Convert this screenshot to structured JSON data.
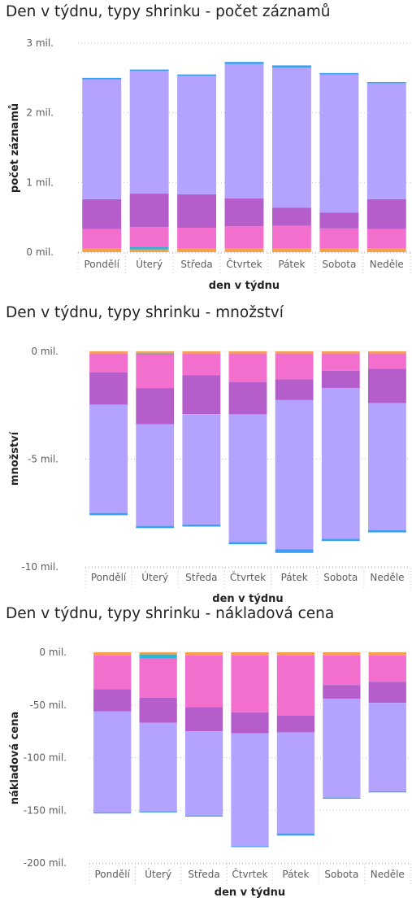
{
  "colors": {
    "grid": "#c8c6c4",
    "segments": [
      "#f6a04d",
      "#29b6d8",
      "#f36fce",
      "#b65dcc",
      "#b3a3ff",
      "#3b9ff0"
    ]
  },
  "chart_data": [
    {
      "type": "bar",
      "stacked": true,
      "title": "Den v týdnu, typy shrinku - počet záznamů",
      "xlabel": "den v týdnu",
      "ylabel": "počet záznamů",
      "categories": [
        "Pondělí",
        "Úterý",
        "Středa",
        "Čtvrtek",
        "Pátek",
        "Sobota",
        "Neděle"
      ],
      "ylim": [
        0,
        3
      ],
      "yticks": [
        0,
        1,
        2,
        3
      ],
      "ytick_labels": [
        "0 mil.",
        "1 mil.",
        "2 mil.",
        "3 mil."
      ],
      "gridlines": true,
      "series": [
        {
          "values": [
            0.05,
            0.04,
            0.05,
            0.05,
            0.05,
            0.05,
            0.05
          ]
        },
        {
          "values": [
            0.0,
            0.03,
            0.0,
            0.0,
            0.0,
            0.0,
            0.0
          ]
        },
        {
          "values": [
            0.28,
            0.29,
            0.3,
            0.32,
            0.33,
            0.29,
            0.28
          ]
        },
        {
          "values": [
            0.43,
            0.48,
            0.48,
            0.4,
            0.26,
            0.23,
            0.43
          ]
        },
        {
          "values": [
            1.72,
            1.76,
            1.7,
            1.93,
            2.01,
            1.98,
            1.66
          ]
        },
        {
          "values": [
            0.02,
            0.02,
            0.02,
            0.03,
            0.03,
            0.02,
            0.02
          ]
        }
      ]
    },
    {
      "type": "bar",
      "stacked": true,
      "title": "Den v týdnu, typy shrinku - množství",
      "xlabel": "den v týdnu",
      "ylabel": "množství",
      "categories": [
        "Pondělí",
        "Úterý",
        "Středa",
        "Čtvrtek",
        "Pátek",
        "Sobota",
        "Neděle"
      ],
      "ylim": [
        -10,
        0
      ],
      "yticks": [
        0,
        -5,
        -10
      ],
      "ytick_labels": [
        "0 mil.",
        "-5 mil.",
        "-10 mil."
      ],
      "gridlines": true,
      "series": [
        {
          "values": [
            -0.1,
            -0.1,
            -0.1,
            -0.1,
            -0.1,
            -0.1,
            -0.1
          ]
        },
        {
          "values": [
            0.0,
            -0.05,
            0.0,
            0.0,
            0.0,
            0.0,
            0.0
          ]
        },
        {
          "values": [
            -0.87,
            -1.55,
            -1.0,
            -1.32,
            -1.2,
            -0.8,
            -0.7
          ]
        },
        {
          "values": [
            -1.51,
            -1.68,
            -1.81,
            -1.5,
            -0.96,
            -0.81,
            -1.6
          ]
        },
        {
          "values": [
            -5.02,
            -4.72,
            -5.12,
            -5.93,
            -6.92,
            -6.99,
            -5.9
          ]
        },
        {
          "values": [
            -0.1,
            -0.1,
            -0.1,
            -0.1,
            -0.17,
            -0.1,
            -0.1
          ]
        }
      ]
    },
    {
      "type": "bar",
      "stacked": true,
      "title": "Den v týdnu, typy shrinku - nákladová cena",
      "xlabel": "den v týdnu",
      "ylabel": "nákladová cena",
      "categories": [
        "Pondělí",
        "Úterý",
        "Středa",
        "Čtvrtek",
        "Pátek",
        "Sobota",
        "Neděle"
      ],
      "ylim": [
        -200,
        0
      ],
      "yticks": [
        0,
        -50,
        -100,
        -150,
        -200
      ],
      "ytick_labels": [
        "0 mil.",
        "-50 mil.",
        "-100 mil.",
        "-150 mil.",
        "-200 mil."
      ],
      "gridlines": true,
      "series": [
        {
          "values": [
            -3,
            -2,
            -3,
            -3,
            -3,
            -3,
            -3
          ]
        },
        {
          "values": [
            0,
            -4,
            0,
            0,
            0,
            0,
            0
          ]
        },
        {
          "values": [
            -32,
            -37,
            -49,
            -54,
            -57,
            -28,
            -25
          ]
        },
        {
          "values": [
            -21,
            -24,
            -23,
            -20,
            -16,
            -13,
            -20
          ]
        },
        {
          "values": [
            -96,
            -84,
            -80,
            -107,
            -96,
            -94,
            -84
          ]
        },
        {
          "values": [
            -1,
            -1,
            -1,
            -1,
            -2,
            -1,
            -1
          ]
        }
      ]
    }
  ]
}
